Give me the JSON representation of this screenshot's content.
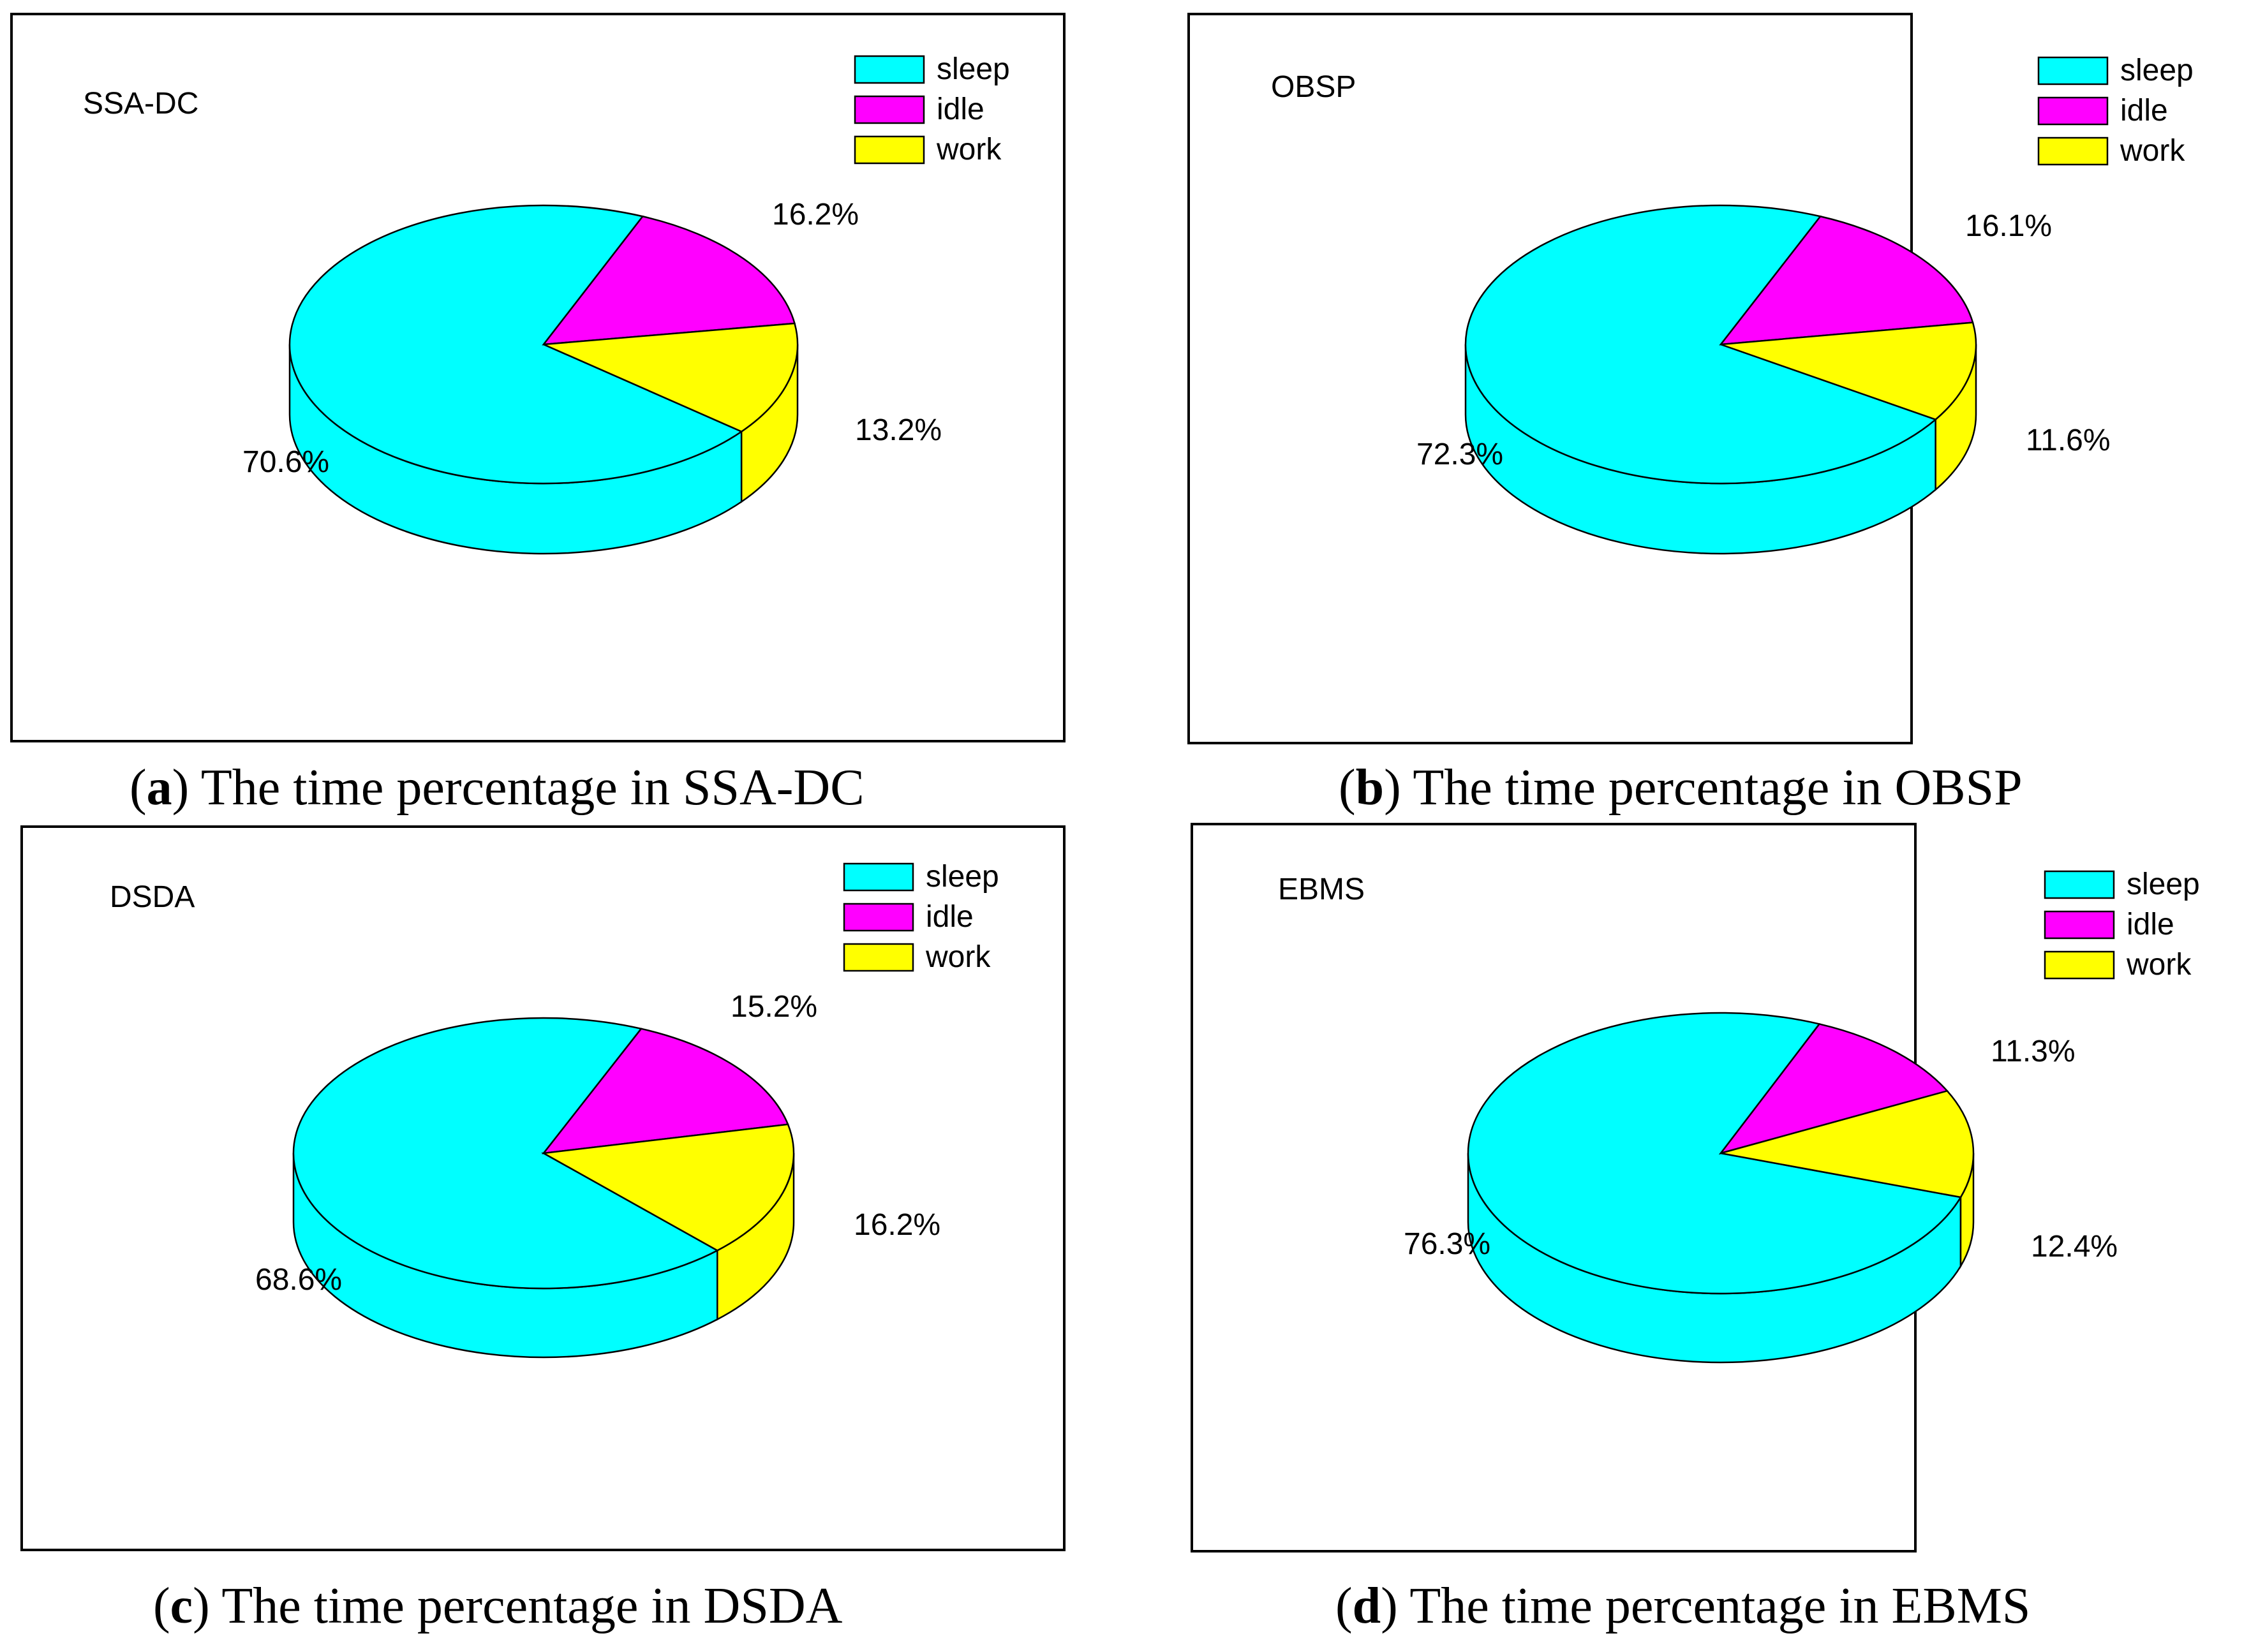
{
  "colors": {
    "sleep": "#00FFFF",
    "idle": "#FF00FF",
    "work": "#FFFF00",
    "outline": "#000000"
  },
  "chart_data": [
    {
      "type": "pie",
      "title": "SSA-DC",
      "caption": {
        "letter": "a",
        "text": " The time percentage in SSA-DC"
      },
      "legend": "top-right",
      "categories": [
        "sleep",
        "idle",
        "work"
      ],
      "values": [
        70.6,
        16.2,
        13.2
      ],
      "labels": [
        "70.6%",
        "16.2%",
        "13.2%"
      ]
    },
    {
      "type": "pie",
      "title": "OBSP",
      "caption": {
        "letter": "b",
        "text": " The time percentage in OBSP"
      },
      "legend": "top-right",
      "categories": [
        "sleep",
        "idle",
        "work"
      ],
      "values": [
        72.3,
        16.1,
        11.6
      ],
      "labels": [
        "72.3%",
        "16.1%",
        "11.6%"
      ]
    },
    {
      "type": "pie",
      "title": "DSDA",
      "caption": {
        "letter": "c",
        "text": " The time percentage in DSDA"
      },
      "legend": "top-right",
      "categories": [
        "sleep",
        "idle",
        "work"
      ],
      "values": [
        68.6,
        15.2,
        16.2
      ],
      "labels": [
        "68.6%",
        "15.2%",
        "16.2%"
      ]
    },
    {
      "type": "pie",
      "title": "EBMS",
      "caption": {
        "letter": "d",
        "text": " The time percentage in EBMS"
      },
      "legend": "top-right",
      "categories": [
        "sleep",
        "idle",
        "work"
      ],
      "values": [
        76.3,
        11.3,
        12.4
      ],
      "labels": [
        "76.3%",
        "11.3%",
        "12.4%"
      ]
    }
  ]
}
